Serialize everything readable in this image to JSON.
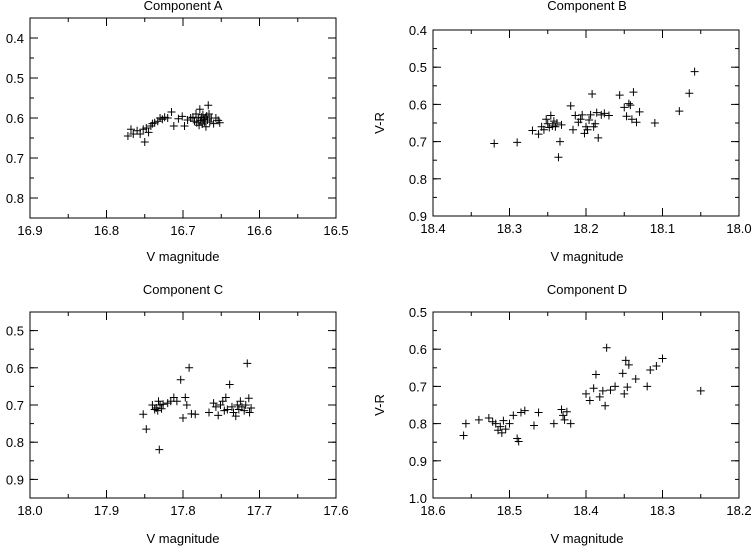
{
  "figure": {
    "background": "#ffffff",
    "ink": "#000000"
  },
  "chart_data": [
    {
      "type": "scatter",
      "title": "Component A",
      "xlabel": "V magnitude",
      "ylabel": "",
      "xlim": [
        16.9,
        16.5
      ],
      "ylim": [
        0.85,
        0.35
      ],
      "xticks": [
        "16.9",
        "16.8",
        "16.7",
        "16.6",
        "16.5"
      ],
      "yticks": [
        "0.4",
        "0.5",
        "0.6",
        "0.7",
        "0.8"
      ],
      "marker": "plus",
      "grid": false,
      "points": [
        [
          16.772,
          0.645
        ],
        [
          16.768,
          0.628
        ],
        [
          16.765,
          0.64
        ],
        [
          16.76,
          0.632
        ],
        [
          16.756,
          0.64
        ],
        [
          16.752,
          0.628
        ],
        [
          16.75,
          0.66
        ],
        [
          16.748,
          0.625
        ],
        [
          16.745,
          0.636
        ],
        [
          16.742,
          0.62
        ],
        [
          16.74,
          0.614
        ],
        [
          16.737,
          0.612
        ],
        [
          16.733,
          0.608
        ],
        [
          16.73,
          0.6
        ],
        [
          16.727,
          0.603
        ],
        [
          16.724,
          0.598
        ],
        [
          16.72,
          0.6
        ],
        [
          16.715,
          0.585
        ],
        [
          16.712,
          0.62
        ],
        [
          16.706,
          0.602
        ],
        [
          16.701,
          0.596
        ],
        [
          16.698,
          0.62
        ],
        [
          16.694,
          0.605
        ],
        [
          16.69,
          0.6
        ],
        [
          16.687,
          0.598
        ],
        [
          16.685,
          0.608
        ],
        [
          16.683,
          0.59
        ],
        [
          16.682,
          0.612
        ],
        [
          16.68,
          0.6
        ],
        [
          16.679,
          0.618
        ],
        [
          16.678,
          0.578
        ],
        [
          16.677,
          0.606
        ],
        [
          16.676,
          0.598
        ],
        [
          16.675,
          0.615
        ],
        [
          16.674,
          0.592
        ],
        [
          16.673,
          0.604
        ],
        [
          16.672,
          0.61
        ],
        [
          16.671,
          0.6
        ],
        [
          16.67,
          0.622
        ],
        [
          16.669,
          0.595
        ],
        [
          16.668,
          0.605
        ],
        [
          16.667,
          0.568
        ],
        [
          16.666,
          0.59
        ],
        [
          16.665,
          0.61
        ],
        [
          16.663,
          0.6
        ],
        [
          16.66,
          0.614
        ],
        [
          16.657,
          0.6
        ],
        [
          16.654,
          0.606
        ],
        [
          16.652,
          0.612
        ]
      ]
    },
    {
      "type": "scatter",
      "title": "Component B",
      "xlabel": "V magnitude",
      "ylabel": "V-R",
      "xlim": [
        18.4,
        18.0
      ],
      "ylim": [
        0.9,
        0.4
      ],
      "xticks": [
        "18.4",
        "18.3",
        "18.2",
        "18.1",
        "18.0"
      ],
      "yticks": [
        "0.4",
        "0.5",
        "0.6",
        "0.7",
        "0.8",
        "0.9"
      ],
      "marker": "plus",
      "grid": false,
      "points": [
        [
          18.32,
          0.705
        ],
        [
          18.29,
          0.702
        ],
        [
          18.27,
          0.67
        ],
        [
          18.262,
          0.68
        ],
        [
          18.258,
          0.66
        ],
        [
          18.255,
          0.668
        ],
        [
          18.252,
          0.64
        ],
        [
          18.25,
          0.652
        ],
        [
          18.248,
          0.662
        ],
        [
          18.246,
          0.63
        ],
        [
          18.244,
          0.658
        ],
        [
          18.242,
          0.645
        ],
        [
          18.24,
          0.66
        ],
        [
          18.238,
          0.65
        ],
        [
          18.236,
          0.742
        ],
        [
          18.234,
          0.7
        ],
        [
          18.232,
          0.655
        ],
        [
          18.22,
          0.604
        ],
        [
          18.217,
          0.668
        ],
        [
          18.214,
          0.63
        ],
        [
          18.21,
          0.648
        ],
        [
          18.207,
          0.64
        ],
        [
          18.205,
          0.628
        ],
        [
          18.202,
          0.678
        ],
        [
          18.2,
          0.66
        ],
        [
          18.198,
          0.668
        ],
        [
          18.196,
          0.642
        ],
        [
          18.194,
          0.628
        ],
        [
          18.192,
          0.572
        ],
        [
          18.19,
          0.66
        ],
        [
          18.188,
          0.652
        ],
        [
          18.186,
          0.622
        ],
        [
          18.184,
          0.69
        ],
        [
          18.18,
          0.628
        ],
        [
          18.176,
          0.624
        ],
        [
          18.17,
          0.63
        ],
        [
          18.156,
          0.575
        ],
        [
          18.15,
          0.608
        ],
        [
          18.147,
          0.632
        ],
        [
          18.144,
          0.598
        ],
        [
          18.142,
          0.602
        ],
        [
          18.14,
          0.64
        ],
        [
          18.138,
          0.567
        ],
        [
          18.134,
          0.648
        ],
        [
          18.13,
          0.62
        ],
        [
          18.11,
          0.65
        ],
        [
          18.078,
          0.618
        ],
        [
          18.065,
          0.57
        ],
        [
          18.058,
          0.512
        ]
      ]
    },
    {
      "type": "scatter",
      "title": "Component C",
      "xlabel": "V magnitude",
      "ylabel": "",
      "xlim": [
        18.0,
        17.6
      ],
      "ylim": [
        0.95,
        0.45
      ],
      "xticks": [
        "18.0",
        "17.9",
        "17.8",
        "17.7",
        "17.6"
      ],
      "yticks": [
        "0.5",
        "0.6",
        "0.7",
        "0.8",
        "0.9"
      ],
      "marker": "plus",
      "grid": false,
      "points": [
        [
          17.852,
          0.725
        ],
        [
          17.848,
          0.765
        ],
        [
          17.84,
          0.7
        ],
        [
          17.837,
          0.712
        ],
        [
          17.835,
          0.708
        ],
        [
          17.833,
          0.715
        ],
        [
          17.832,
          0.69
        ],
        [
          17.831,
          0.82
        ],
        [
          17.83,
          0.7
        ],
        [
          17.828,
          0.71
        ],
        [
          17.826,
          0.698
        ],
        [
          17.82,
          0.695
        ],
        [
          17.816,
          0.69
        ],
        [
          17.812,
          0.68
        ],
        [
          17.808,
          0.69
        ],
        [
          17.803,
          0.632
        ],
        [
          17.8,
          0.735
        ],
        [
          17.797,
          0.68
        ],
        [
          17.795,
          0.7
        ],
        [
          17.792,
          0.6
        ],
        [
          17.789,
          0.724
        ],
        [
          17.784,
          0.725
        ],
        [
          17.766,
          0.72
        ],
        [
          17.76,
          0.695
        ],
        [
          17.757,
          0.705
        ],
        [
          17.754,
          0.728
        ],
        [
          17.751,
          0.7
        ],
        [
          17.748,
          0.69
        ],
        [
          17.746,
          0.715
        ],
        [
          17.744,
          0.68
        ],
        [
          17.742,
          0.712
        ],
        [
          17.739,
          0.645
        ],
        [
          17.736,
          0.705
        ],
        [
          17.734,
          0.72
        ],
        [
          17.731,
          0.73
        ],
        [
          17.729,
          0.7
        ],
        [
          17.727,
          0.712
        ],
        [
          17.725,
          0.69
        ],
        [
          17.723,
          0.705
        ],
        [
          17.72,
          0.715
        ],
        [
          17.718,
          0.7
        ],
        [
          17.716,
          0.588
        ],
        [
          17.714,
          0.682
        ],
        [
          17.713,
          0.72
        ],
        [
          17.711,
          0.708
        ]
      ]
    },
    {
      "type": "scatter",
      "title": "Component D",
      "xlabel": "V magnitude",
      "ylabel": "V-R",
      "xlim": [
        18.6,
        18.2
      ],
      "ylim": [
        1.0,
        0.5
      ],
      "xticks": [
        "18.6",
        "18.5",
        "18.4",
        "18.3",
        "18.2"
      ],
      "yticks": [
        "0.5",
        "0.6",
        "0.7",
        "0.8",
        "0.9",
        "1.0"
      ],
      "marker": "plus",
      "grid": false,
      "points": [
        [
          18.56,
          0.832
        ],
        [
          18.557,
          0.8
        ],
        [
          18.54,
          0.79
        ],
        [
          18.527,
          0.785
        ],
        [
          18.522,
          0.795
        ],
        [
          18.518,
          0.8
        ],
        [
          18.515,
          0.818
        ],
        [
          18.512,
          0.808
        ],
        [
          18.51,
          0.825
        ],
        [
          18.508,
          0.792
        ],
        [
          18.505,
          0.815
        ],
        [
          18.5,
          0.8
        ],
        [
          18.495,
          0.778
        ],
        [
          18.49,
          0.84
        ],
        [
          18.488,
          0.848
        ],
        [
          18.485,
          0.77
        ],
        [
          18.48,
          0.765
        ],
        [
          18.468,
          0.805
        ],
        [
          18.462,
          0.77
        ],
        [
          18.442,
          0.8
        ],
        [
          18.432,
          0.762
        ],
        [
          18.43,
          0.778
        ],
        [
          18.428,
          0.79
        ],
        [
          18.425,
          0.768
        ],
        [
          18.42,
          0.8
        ],
        [
          18.4,
          0.72
        ],
        [
          18.395,
          0.738
        ],
        [
          18.39,
          0.705
        ],
        [
          18.387,
          0.668
        ],
        [
          18.382,
          0.728
        ],
        [
          18.378,
          0.712
        ],
        [
          18.375,
          0.752
        ],
        [
          18.373,
          0.596
        ],
        [
          18.368,
          0.71
        ],
        [
          18.362,
          0.7
        ],
        [
          18.352,
          0.665
        ],
        [
          18.35,
          0.72
        ],
        [
          18.348,
          0.63
        ],
        [
          18.346,
          0.702
        ],
        [
          18.344,
          0.642
        ],
        [
          18.335,
          0.68
        ],
        [
          18.32,
          0.7
        ],
        [
          18.316,
          0.656
        ],
        [
          18.308,
          0.645
        ],
        [
          18.3,
          0.625
        ],
        [
          18.25,
          0.712
        ]
      ]
    }
  ]
}
